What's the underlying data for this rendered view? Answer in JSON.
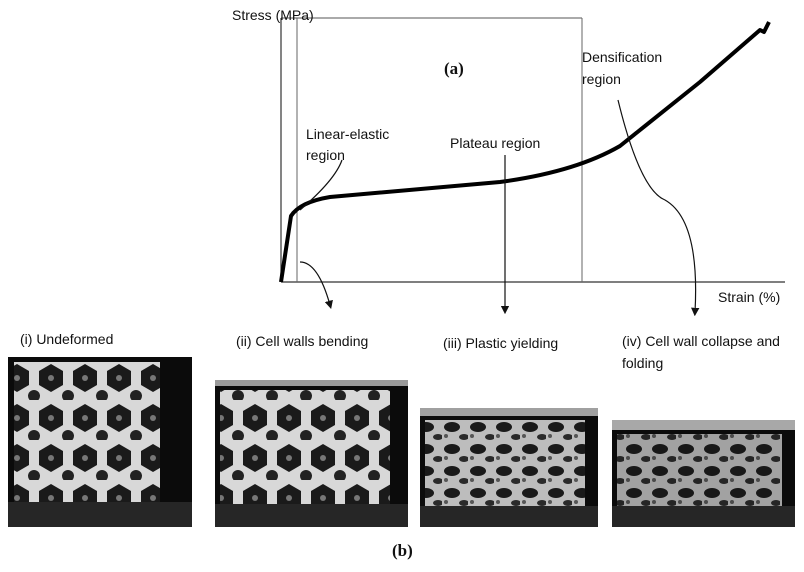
{
  "panel_a": {
    "label": "(a)",
    "y_axis": "Stress (MPa)",
    "x_axis": "Strain (%)",
    "regions": [
      {
        "lines": [
          "Linear-elastic",
          "region"
        ]
      },
      {
        "lines": [
          "Plateau region"
        ]
      },
      {
        "lines": [
          "Densification",
          "region"
        ]
      }
    ]
  },
  "panel_b": {
    "label": "(b)",
    "stages": [
      {
        "lines": [
          "(i) Undeformed"
        ]
      },
      {
        "lines": [
          "(ii) Cell walls bending"
        ]
      },
      {
        "lines": [
          "(iii) Plastic yielding"
        ]
      },
      {
        "lines": [
          "(iv) Cell wall collapse and",
          "folding"
        ]
      }
    ]
  }
}
